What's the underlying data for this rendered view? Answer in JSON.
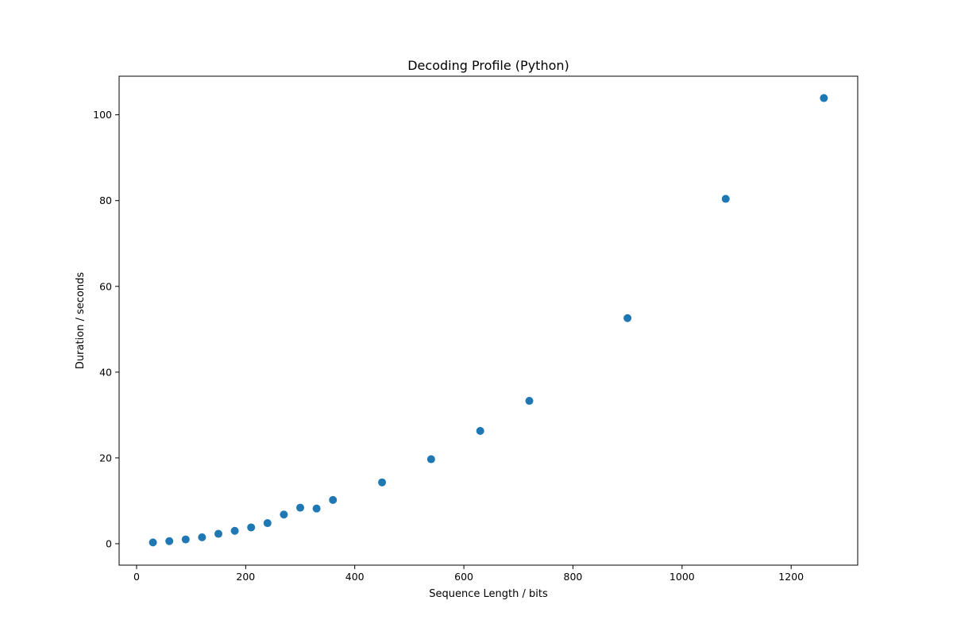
{
  "chart_data": {
    "type": "scatter",
    "title": "Decoding Profile (Python)",
    "xlabel": "Sequence Length / bits",
    "ylabel": "Duration / seconds",
    "xlim": [
      -32,
      1322
    ],
    "ylim": [
      -5,
      109
    ],
    "xticks": [
      0,
      200,
      400,
      600,
      800,
      1000,
      1200
    ],
    "yticks": [
      0,
      20,
      40,
      60,
      80,
      100
    ],
    "grid": false,
    "marker_color": "#1f77b4",
    "series": [
      {
        "x": [
          30,
          60,
          90,
          120,
          150,
          180,
          210,
          240,
          270,
          300,
          330,
          360,
          450,
          540,
          630,
          720,
          900,
          1080,
          1260
        ],
        "y": [
          0.3,
          0.6,
          1.0,
          1.5,
          2.3,
          3.0,
          3.8,
          4.8,
          6.8,
          8.4,
          8.2,
          10.2,
          14.3,
          19.7,
          26.3,
          33.3,
          52.6,
          80.4,
          103.9
        ]
      }
    ]
  }
}
